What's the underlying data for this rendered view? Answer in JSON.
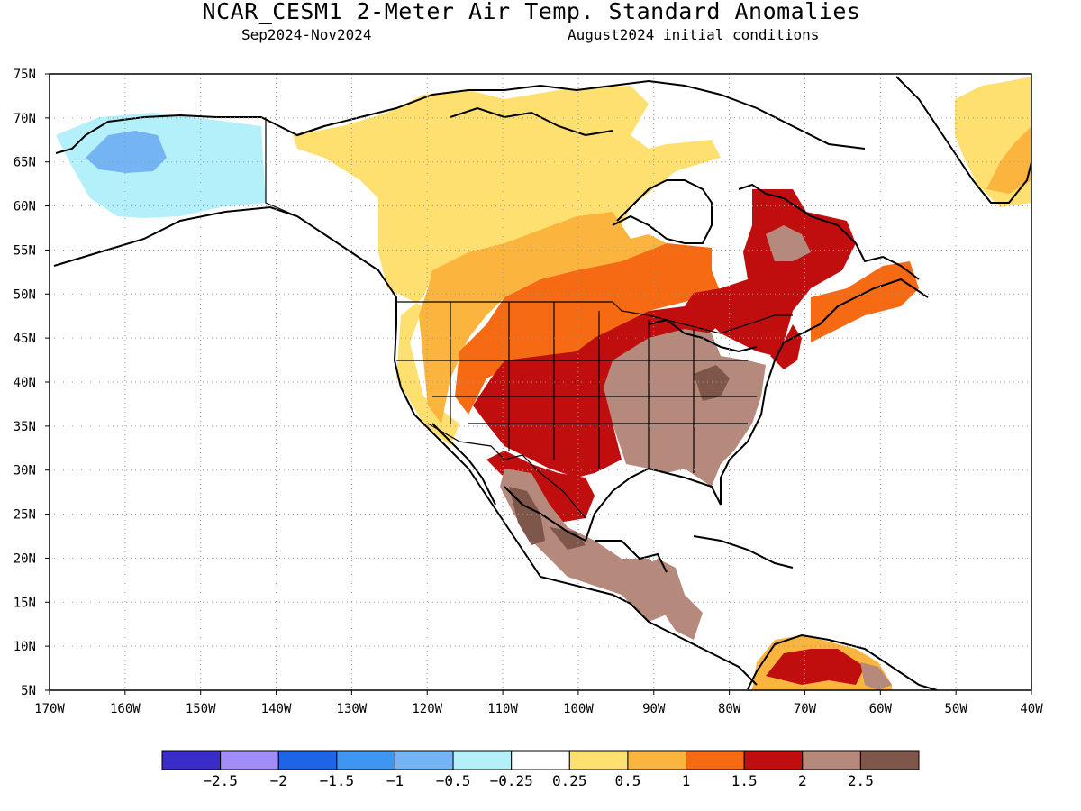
{
  "title": "NCAR_CESM1 2-Meter Air Temp. Standard Anomalies",
  "subtitle_left": "Sep2024-Nov2024",
  "subtitle_right": "August2024 initial conditions",
  "map": {
    "lon_range": [
      -170,
      -40
    ],
    "lat_range": [
      5,
      75
    ],
    "lat_labels": [
      "5N",
      "10N",
      "15N",
      "20N",
      "25N",
      "30N",
      "35N",
      "40N",
      "45N",
      "50N",
      "55N",
      "60N",
      "65N",
      "70N",
      "75N"
    ],
    "lon_labels": [
      "170W",
      "160W",
      "150W",
      "140W",
      "130W",
      "120W",
      "110W",
      "100W",
      "90W",
      "80W",
      "70W",
      "60W",
      "50W",
      "40W"
    ],
    "grid": "dotted",
    "anomaly_regions": [
      {
        "region": "Alaska interior",
        "level": "-1",
        "color": "#74b4f4"
      },
      {
        "region": "Alaska west/north",
        "level": "-0.5",
        "color": "#b4f0fa"
      },
      {
        "region": "Canadian Arctic / northwest Canada",
        "level": "0.25",
        "color": "#fde06f"
      },
      {
        "region": "central Canada",
        "level": "0.5",
        "color": "#fbb53f"
      },
      {
        "region": "northern Plains / Ontario",
        "level": "1",
        "color": "#f56a12"
      },
      {
        "region": "southern Plains / Quebec / Southwest",
        "level": "1.5",
        "color": "#c00e0e"
      },
      {
        "region": "Southeast US / Ohio Valley / Mexico",
        "level": "2",
        "color": "#b5897c"
      },
      {
        "region": "Appalachians / central Mexico",
        "level": "2.5",
        "color": "#7f564a"
      }
    ]
  },
  "colorbar": {
    "colors": [
      "#3a2cc8",
      "#a18cf8",
      "#1e64e6",
      "#3c96f2",
      "#74b4f4",
      "#b4f0fa",
      "#ffffff",
      "#fde06f",
      "#fbb53f",
      "#f56a12",
      "#c00e0e",
      "#b5897c",
      "#7f564a"
    ],
    "labels": [
      "-2.5",
      "-2",
      "-1.5",
      "-1",
      "-0.5",
      "-0.25",
      "0.25",
      "0.5",
      "1",
      "1.5",
      "2",
      "2.5"
    ]
  }
}
